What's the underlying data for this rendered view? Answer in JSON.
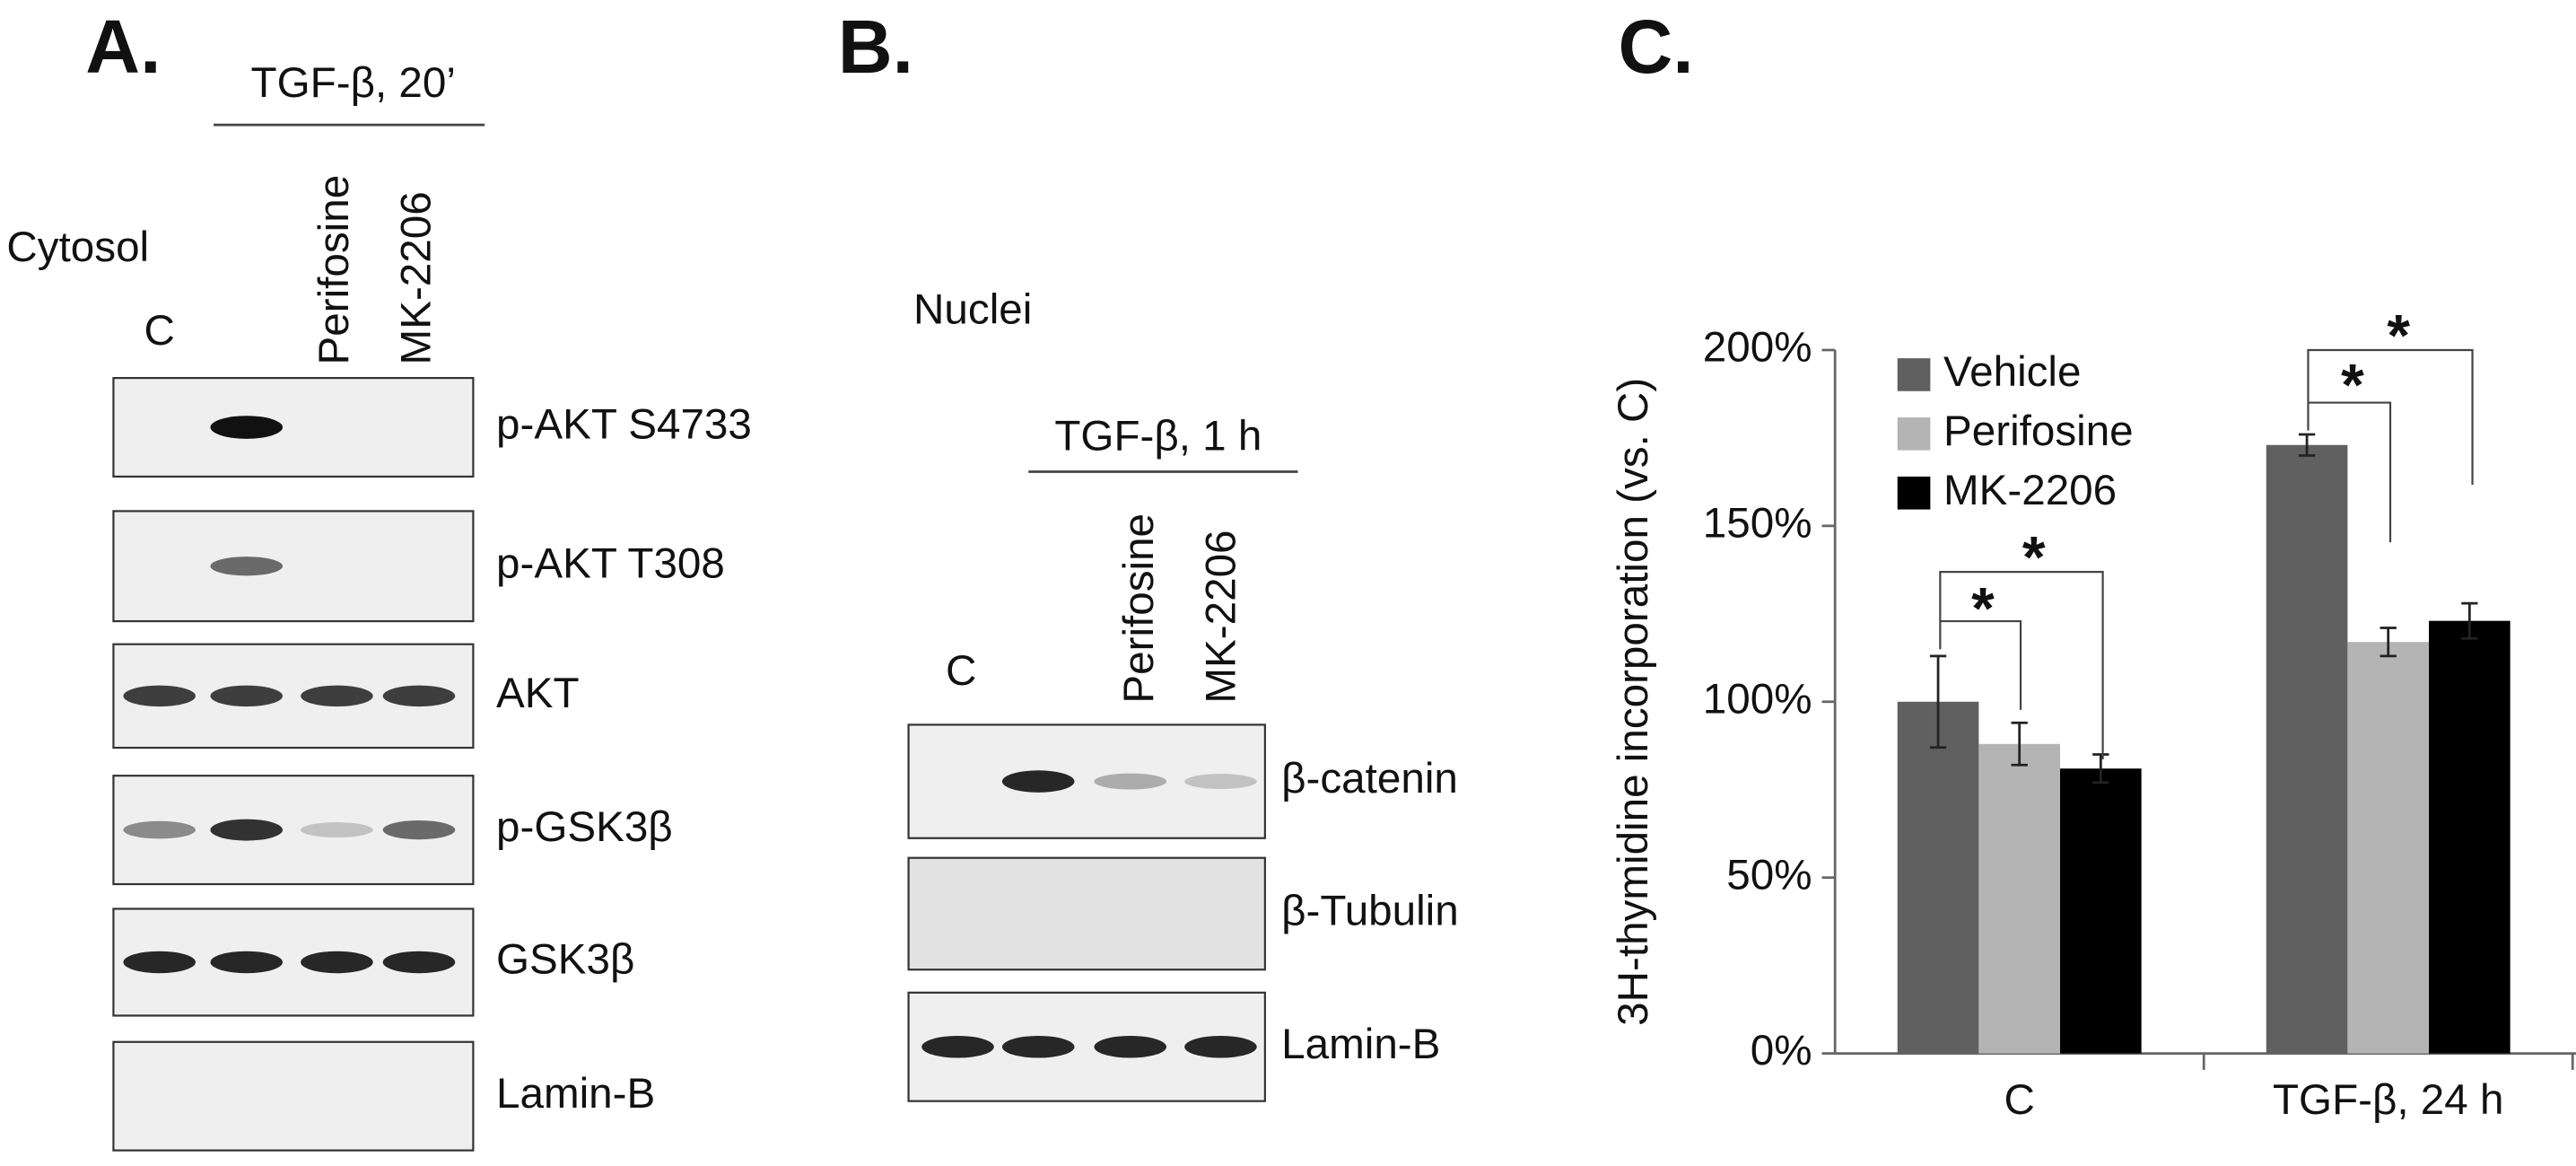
{
  "panel_a": {
    "label": "A.",
    "treatment": "TGF-β, 20’",
    "fraction": "Cytosol",
    "lanes": [
      "C",
      "Perifosine",
      "MK-2206"
    ],
    "blots": [
      "p-AKT S4733",
      "p-AKT T308",
      "AKT",
      "p-GSK3β",
      "GSK3β",
      "Lamin-B"
    ]
  },
  "panel_b": {
    "label": "B.",
    "fraction": "Nuclei",
    "treatment": "TGF-β, 1 h",
    "lanes": [
      "C",
      "Perifosine",
      "MK-2206"
    ],
    "blots": [
      "β-catenin",
      "β-Tubulin",
      "Lamin-B"
    ]
  },
  "chart_data": {
    "type": "bar",
    "panel_label": "C.",
    "y_label": "3H-thymidine incorporation (vs. C)",
    "categories": [
      "C",
      "TGF-β, 24 h"
    ],
    "series": [
      {
        "name": "Vehicle",
        "color": "#606060",
        "values": [
          100,
          173
        ],
        "errors": [
          13,
          3
        ]
      },
      {
        "name": "Perifosine",
        "color": "#b4b4b4",
        "values": [
          88,
          117
        ],
        "errors": [
          6,
          4
        ]
      },
      {
        "name": "MK-2206",
        "color": "#000000",
        "values": [
          81,
          123
        ],
        "errors": [
          4,
          5
        ]
      }
    ],
    "ylim": [
      0,
      200
    ],
    "yticks": [
      {
        "value": 0,
        "label": "0%"
      },
      {
        "value": 50,
        "label": "50%"
      },
      {
        "value": 100,
        "label": "100%"
      },
      {
        "value": 150,
        "label": "150%"
      },
      {
        "value": 200,
        "label": "200%"
      }
    ],
    "legend": "upper left",
    "annotations": [
      "*",
      "*",
      "*",
      "*"
    ]
  }
}
